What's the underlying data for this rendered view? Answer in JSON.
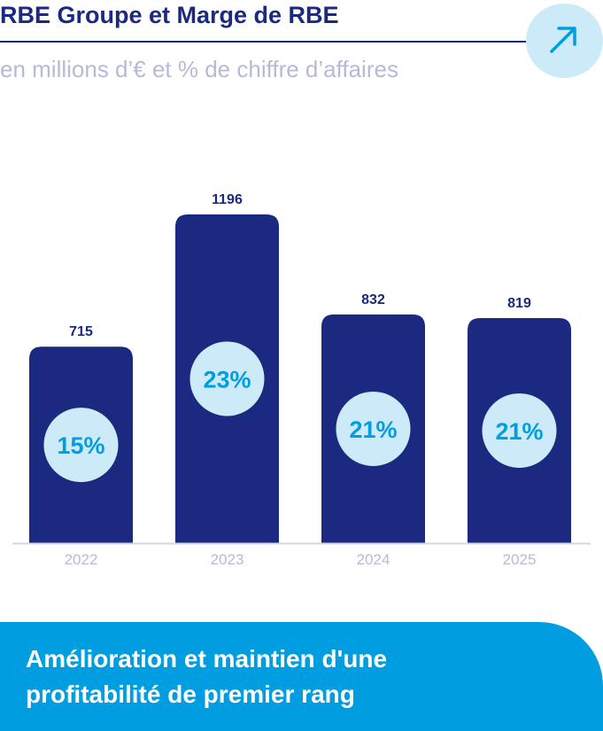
{
  "header": {
    "title": "RBE Groupe et Marge de RBE",
    "subtitle": "en millions d’€ et % de chiffre d’affaires",
    "icon": "arrow-up-right-icon"
  },
  "chart_data": {
    "type": "bar",
    "title": "RBE Groupe et Marge de RBE",
    "subtitle": "en millions d’€ et % de chiffre d’affaires",
    "categories": [
      "2022",
      "2023",
      "2024",
      "2025"
    ],
    "values": [
      715,
      1196,
      832,
      819
    ],
    "value_labels": [
      "715",
      "1196",
      "832",
      "819"
    ],
    "margins": [
      "15%",
      "23%",
      "21%",
      "21%"
    ],
    "ylim": [
      0,
      1196
    ],
    "grid": false,
    "colors": {
      "bar": "#1b2a80",
      "circle": "#cdeaf8",
      "margin_text": "#009ee0",
      "axis_label": "#b5bad9"
    }
  },
  "banner": {
    "line1": "Amélioration et maintien d'une",
    "line2": "profitabilité de premier rang"
  }
}
